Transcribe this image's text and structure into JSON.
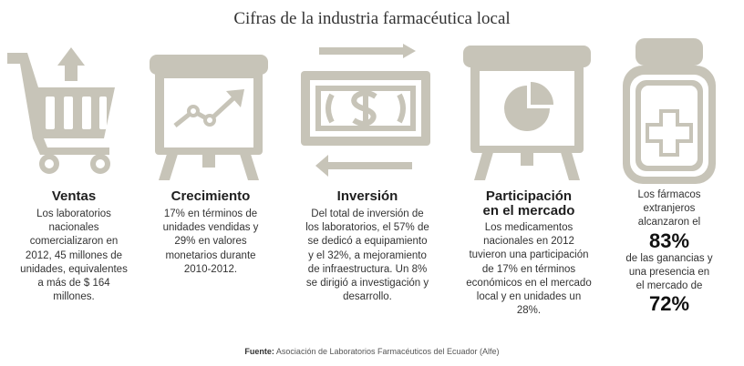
{
  "title": "Cifras de la industria farmacéutica local",
  "icons": {
    "ventas": "shopping-cart-up-arrow-icon",
    "crecimiento": "presentation-chart-up-icon",
    "inversion": "money-exchange-arrows-icon",
    "participacion": "presentation-pie-chart-icon",
    "extranjeros": "medicine-bottle-cross-icon"
  },
  "colors": {
    "icon": "#c7c4b8",
    "text": "#333333"
  },
  "columns": [
    {
      "heading": "Ventas",
      "lines": [
        "Los laboratorios",
        "nacionales",
        "comercializaron en",
        "2012, 45 millones de",
        "unidades, equivalentes",
        "a más de  $ 164",
        "millones."
      ]
    },
    {
      "heading": "Crecimiento",
      "lines": [
        "17% en términos de",
        "unidades vendidas y",
        "29% en valores",
        "monetarios durante",
        "2010-2012."
      ]
    },
    {
      "heading": "Inversión",
      "lines": [
        "Del total de inversión de",
        "los laboratorios,  el 57% de",
        "se dedicó a equipamiento",
        "y el 32%, a mejoramiento",
        "de infraestructura. Un 8%",
        "se dirigió a investigación y",
        "desarrollo."
      ]
    },
    {
      "heading_lines": [
        "Participación",
        "en el mercado"
      ],
      "lines": [
        "Los medicamentos",
        "nacionales en 2012",
        "tuvieron una participación",
        "de 17% en términos",
        "económicos en el mercado",
        "local y en unidades un",
        "28%."
      ]
    }
  ],
  "extranjeros": {
    "line1": "Los fármacos",
    "line2": "extranjeros",
    "line3": "alcanzaron el",
    "big1": "83%",
    "line4": "de las ganancias y",
    "line5": "una presencia en",
    "line6": "el mercado de",
    "big2": "72%"
  },
  "source": {
    "label": "Fuente:",
    "text": " Asociación de Laboratorios Farmacéuticos del Ecuador (Alfe)"
  }
}
